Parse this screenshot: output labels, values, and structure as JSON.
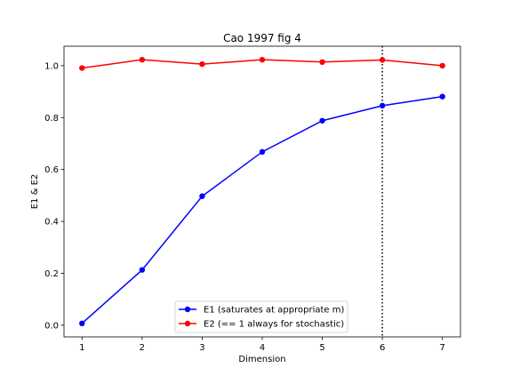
{
  "chart_data": {
    "type": "line",
    "title": "Cao 1997 fig 4",
    "xlabel": "Dimension",
    "ylabel": "E1 & E2",
    "xlim": [
      0.7,
      7.3
    ],
    "ylim": [
      -0.045,
      1.075
    ],
    "xticks": [
      1,
      2,
      3,
      4,
      5,
      6,
      7
    ],
    "yticks": [
      0.0,
      0.2,
      0.4,
      0.6,
      0.8,
      1.0
    ],
    "grid": false,
    "legend_position": "bottom-center",
    "vline": {
      "x": 6,
      "style": "dotted",
      "color": "#000000"
    },
    "x": [
      1,
      2,
      3,
      4,
      5,
      6,
      7
    ],
    "series": [
      {
        "name": "E1 (saturates at appropriate m)",
        "color": "#0000ff",
        "values": [
          0.007,
          0.213,
          0.497,
          0.668,
          0.788,
          0.846,
          0.881
        ]
      },
      {
        "name": "E2 (== 1 always for stochastic)",
        "color": "#ff0000",
        "values": [
          0.991,
          1.023,
          1.006,
          1.023,
          1.014,
          1.022,
          1.0
        ]
      }
    ]
  }
}
